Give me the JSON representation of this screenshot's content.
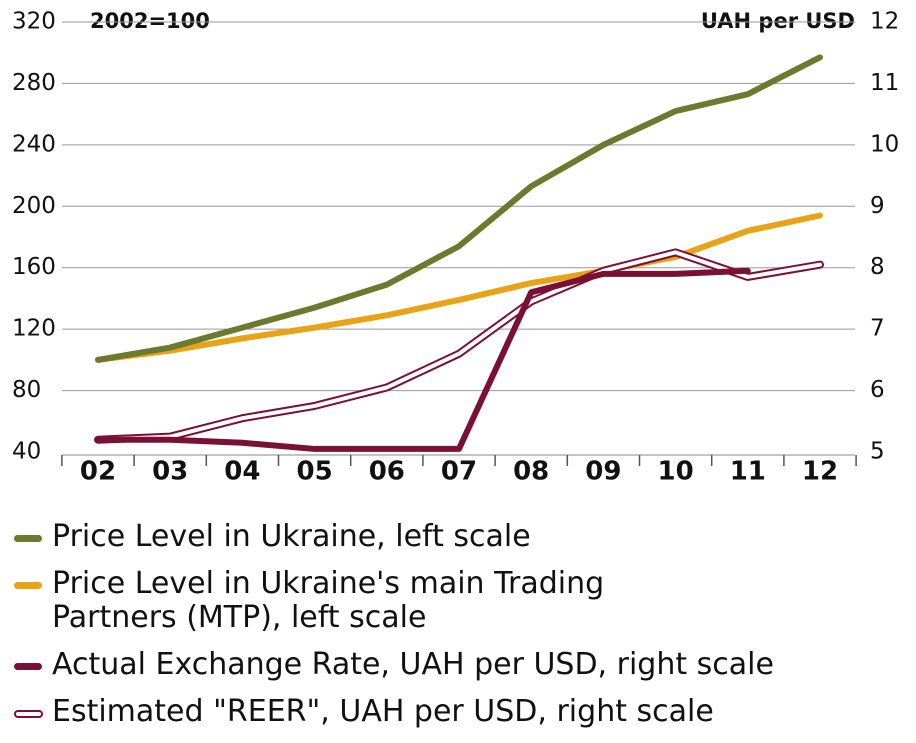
{
  "chart_data": {
    "type": "line",
    "left_axis_note": "2002=100",
    "right_axis_note": "UAH per USD",
    "categories": [
      "02",
      "03",
      "04",
      "05",
      "06",
      "07",
      "08",
      "09",
      "10",
      "11",
      "12"
    ],
    "ylim": [
      40,
      320
    ],
    "yticks": [
      40,
      80,
      120,
      160,
      200,
      240,
      280,
      320
    ],
    "y2lim": [
      5,
      12
    ],
    "y2ticks": [
      5,
      6,
      7,
      8,
      9,
      10,
      11,
      12
    ],
    "grid": true,
    "series": [
      {
        "name": "Price Level in Ukraine, left scale",
        "color": "#6b7a2e",
        "axis": "y",
        "values": [
          100,
          108,
          121,
          134,
          149,
          174,
          213,
          240,
          262,
          273,
          297
        ]
      },
      {
        "name": "Price Level in Ukraine's main Trading Partners (MTP), left scale",
        "color": "#e8a317",
        "axis": "y",
        "values": [
          100,
          106,
          114,
          121,
          129,
          139,
          150,
          158,
          167,
          184,
          194
        ]
      },
      {
        "name": "Actual Exchange Rate, UAH per USD, right scale",
        "color": "#7b1035",
        "axis": "y2",
        "values": [
          5.2,
          5.2,
          5.15,
          5.05,
          5.05,
          5.05,
          7.6,
          7.9,
          7.9,
          7.95,
          null
        ]
      },
      {
        "name": "Estimated \"REER\", UAH per USD, right scale",
        "color": "#7b1035",
        "axis": "y2",
        "hollow": true,
        "values": [
          5.2,
          5.25,
          5.55,
          5.75,
          6.05,
          6.6,
          7.45,
          7.95,
          8.25,
          7.85,
          8.05
        ]
      }
    ]
  }
}
